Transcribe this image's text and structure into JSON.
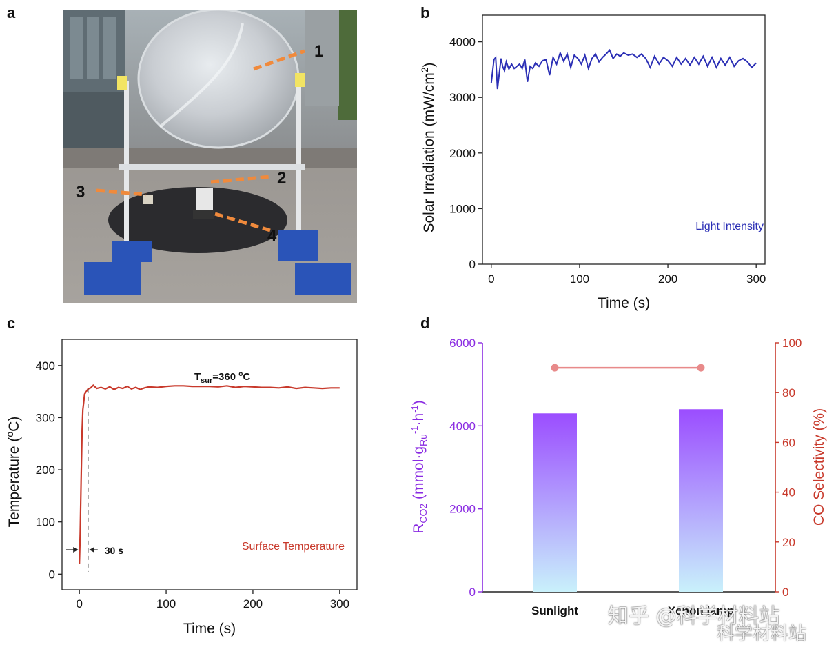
{
  "panels": {
    "a": "a",
    "b": "b",
    "c": "c",
    "d": "d"
  },
  "photo": {
    "callouts": [
      "1",
      "2",
      "3",
      "4"
    ],
    "colors": {
      "callout_line": "#f08a3c"
    }
  },
  "watermark": {
    "line1": "知乎 @科学材料站",
    "line2": "科学材料站"
  },
  "chart_data": [
    {
      "panel": "b",
      "type": "line",
      "xlabel": "Time (s)",
      "ylabel": "Solar Irradiation (mW/cm",
      "ylabel_sup": "2",
      "ylabel_close": ")",
      "xlim": [
        -10,
        310
      ],
      "ylim": [
        0,
        4000
      ],
      "xticks": [
        0,
        100,
        200,
        300
      ],
      "yticks": [
        0,
        1000,
        2000,
        3000,
        4000
      ],
      "legend": "Light Intensity",
      "color": "#2b2fb5",
      "x": [
        0,
        3,
        5,
        7,
        9,
        11,
        13,
        15,
        17,
        20,
        23,
        26,
        29,
        32,
        35,
        38,
        41,
        44,
        47,
        50,
        54,
        58,
        62,
        66,
        70,
        74,
        78,
        82,
        86,
        90,
        94,
        98,
        102,
        106,
        110,
        114,
        118,
        122,
        126,
        130,
        134,
        138,
        142,
        146,
        150,
        155,
        160,
        165,
        170,
        175,
        180,
        185,
        190,
        195,
        200,
        205,
        210,
        215,
        220,
        225,
        230,
        235,
        240,
        245,
        250,
        255,
        260,
        265,
        270,
        275,
        280,
        285,
        290,
        295,
        300
      ],
      "y": [
        3260,
        3680,
        3720,
        3150,
        3420,
        3700,
        3550,
        3480,
        3640,
        3510,
        3600,
        3520,
        3560,
        3600,
        3520,
        3680,
        3280,
        3560,
        3520,
        3620,
        3560,
        3660,
        3680,
        3400,
        3720,
        3600,
        3800,
        3650,
        3780,
        3540,
        3760,
        3700,
        3600,
        3760,
        3520,
        3700,
        3780,
        3640,
        3720,
        3780,
        3850,
        3700,
        3780,
        3740,
        3800,
        3760,
        3780,
        3720,
        3780,
        3700,
        3540,
        3740,
        3600,
        3720,
        3660,
        3560,
        3720,
        3600,
        3700,
        3580,
        3720,
        3600,
        3740,
        3560,
        3720,
        3540,
        3700,
        3580,
        3720,
        3560,
        3660,
        3700,
        3640,
        3540,
        3620
      ]
    },
    {
      "panel": "c",
      "type": "line",
      "xlabel": "Time (s)",
      "ylabel": "Temperature (",
      "ylabel_sup": "o",
      "ylabel_close": "C)",
      "xlim": [
        -20,
        320
      ],
      "ylim": [
        -30,
        450
      ],
      "xticks": [
        0,
        100,
        200,
        300
      ],
      "yticks": [
        0,
        100,
        200,
        300,
        400
      ],
      "legend": "Surface Temperature",
      "color": "#c8392b",
      "annotation": {
        "main": "T",
        "sub": "sur",
        "rest": "=360 ",
        "sup": "o",
        "unit": "C"
      },
      "marker_label": "30 s",
      "marker_x": 10,
      "x": [
        0,
        1,
        2,
        3,
        4,
        5,
        6,
        8,
        10,
        13,
        16,
        20,
        25,
        30,
        35,
        40,
        45,
        50,
        55,
        60,
        65,
        70,
        75,
        80,
        90,
        100,
        110,
        120,
        130,
        140,
        150,
        160,
        170,
        180,
        190,
        200,
        210,
        220,
        230,
        240,
        250,
        260,
        270,
        280,
        290,
        300
      ],
      "y": [
        20,
        80,
        180,
        270,
        315,
        330,
        345,
        350,
        355,
        357,
        362,
        356,
        358,
        355,
        359,
        354,
        358,
        356,
        360,
        355,
        358,
        354,
        357,
        359,
        358,
        360,
        361,
        361,
        360,
        360,
        360,
        359,
        361,
        358,
        360,
        359,
        358,
        358,
        357,
        359,
        356,
        358,
        357,
        356,
        357,
        357
      ]
    },
    {
      "panel": "d",
      "type": "bar",
      "categories": [
        "Sunlight",
        "Xenon lamp"
      ],
      "values": [
        4300,
        4400
      ],
      "ylabel_left_main": "R",
      "ylabel_left_sub": "CO2",
      "ylabel_left_mid": " (mmol·g",
      "ylabel_left_sub2": "Ru",
      "ylabel_left_sup1": "-1",
      "ylabel_left_dot": "·h",
      "ylabel_left_sup2": "-1",
      "ylabel_left_close": ")",
      "ylabel_right": "CO Selectivity (%)",
      "ylim_left": [
        0,
        6000
      ],
      "yticks_left": [
        0,
        2000,
        4000,
        6000
      ],
      "ylim_right": [
        0,
        100
      ],
      "yticks_right": [
        0,
        20,
        40,
        60,
        80,
        100
      ],
      "selectivity": [
        90,
        90
      ],
      "colors": {
        "left_axis": "#8a2be2",
        "right_axis": "#c8392b",
        "bar_top": "#9b4dff",
        "bar_bottom": "#c9f1fb",
        "selectivity_line": "#e88a8a"
      }
    }
  ]
}
